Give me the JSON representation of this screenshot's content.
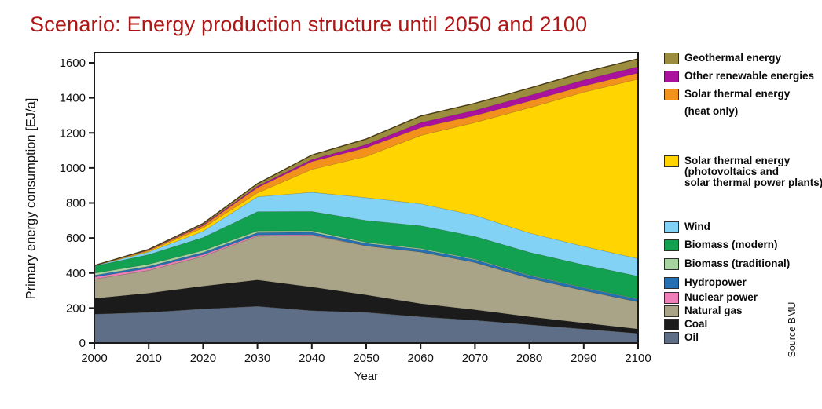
{
  "title": "Scenario: Energy production structure until 2050 and 2100",
  "source_note": "Source BMU",
  "chart_data": {
    "type": "area",
    "stacked": true,
    "title": "Scenario: Energy production structure until 2050 and 2100",
    "xlabel": "Year",
    "ylabel": "Primary energy consumption [EJ/a]",
    "ylim": [
      0,
      1600
    ],
    "ytick_step": 200,
    "yticks": [
      0,
      200,
      400,
      600,
      800,
      1000,
      1200,
      1400,
      1600
    ],
    "categories": [
      2000,
      2010,
      2020,
      2030,
      2040,
      2050,
      2060,
      2070,
      2080,
      2090,
      2100
    ],
    "grid": false,
    "legend_position": "right",
    "units": "EJ/a",
    "series": [
      {
        "name": "Oil",
        "slug": "oil",
        "color": "#5e6e86",
        "values": [
          165,
          175,
          195,
          210,
          185,
          175,
          150,
          130,
          105,
          80,
          55
        ],
        "legend": {
          "top": 423,
          "lines": [
            "Oil"
          ]
        }
      },
      {
        "name": "Coal",
        "slug": "coal",
        "color": "#1b1b1b",
        "values": [
          90,
          110,
          130,
          150,
          135,
          100,
          75,
          60,
          45,
          35,
          25
        ],
        "legend": {
          "top": 406,
          "lines": [
            "Coal"
          ]
        }
      },
      {
        "name": "Natural gas",
        "slug": "natural-gas",
        "color": "#a9a387",
        "values": [
          110,
          130,
          170,
          250,
          295,
          280,
          295,
          270,
          220,
          185,
          155
        ],
        "legend": {
          "top": 389,
          "lines": [
            "Natural gas"
          ]
        }
      },
      {
        "name": "Nuclear power",
        "slug": "nuclear-power",
        "color": "#ef7fb9",
        "values": [
          12,
          12,
          10,
          7,
          4,
          0,
          0,
          0,
          0,
          0,
          0
        ],
        "legend": {
          "top": 372,
          "lines": [
            "Nuclear power"
          ]
        }
      },
      {
        "name": "Hydropower",
        "slug": "hydropower",
        "color": "#2470b3",
        "values": [
          10,
          11,
          12,
          13,
          14,
          14,
          15,
          15,
          15,
          15,
          15
        ],
        "legend": {
          "top": 353,
          "lines": [
            "Hydropower"
          ]
        }
      },
      {
        "name": "Biomass (traditional)",
        "slug": "biomass-traditional",
        "color": "#a6d3a0",
        "values": [
          12,
          12,
          11,
          10,
          8,
          6,
          5,
          4,
          3,
          2,
          2
        ],
        "legend": {
          "top": 329,
          "lines": [
            "Biomass (traditional)"
          ]
        }
      },
      {
        "name": "Biomass (modern)",
        "slug": "biomass-modern",
        "color": "#12a150",
        "values": [
          40,
          55,
          75,
          110,
          110,
          125,
          130,
          130,
          130,
          130,
          130
        ],
        "legend": {
          "top": 305,
          "lines": [
            "Biomass (modern)"
          ]
        }
      },
      {
        "name": "Wind",
        "slug": "wind",
        "color": "#82d2f5",
        "values": [
          2,
          15,
          35,
          85,
          110,
          130,
          125,
          120,
          110,
          105,
          100
        ],
        "legend": {
          "top": 282,
          "lines": [
            "Wind"
          ]
        }
      },
      {
        "name": "Solar thermal energy (photovoltaics and solar thermal power plants)",
        "slug": "solar-pv",
        "color": "#ffd400",
        "values": [
          0,
          5,
          20,
          22,
          130,
          235,
          390,
          530,
          715,
          880,
          1025
        ],
        "legend": {
          "top": 198,
          "lines": [
            "Solar thermal energy",
            "(photovoltaics and",
            "solar thermal power plants)"
          ],
          "line_gap": 14
        }
      },
      {
        "name": "Solar thermal energy (heat only)",
        "slug": "solar-heat",
        "color": "#f2921d",
        "values": [
          1,
          5,
          12,
          30,
          45,
          50,
          45,
          40,
          38,
          36,
          35
        ],
        "legend": {
          "top": 113,
          "lines": [
            "Solar thermal energy",
            "(heat only)"
          ],
          "line_gap": 22
        }
      },
      {
        "name": "Other renewable energies",
        "slug": "other-renewables",
        "color": "#aa119c",
        "values": [
          0,
          2,
          5,
          8,
          12,
          18,
          28,
          30,
          32,
          34,
          36
        ],
        "legend": {
          "top": 90,
          "lines": [
            "Other renewable energies"
          ]
        }
      },
      {
        "name": "Geothermal energy",
        "slug": "geothermal",
        "color": "#9b8d3d",
        "values": [
          1,
          3,
          8,
          15,
          25,
          32,
          38,
          40,
          42,
          44,
          45
        ],
        "legend": {
          "top": 67,
          "lines": [
            "Geothermal energy"
          ]
        }
      }
    ]
  }
}
